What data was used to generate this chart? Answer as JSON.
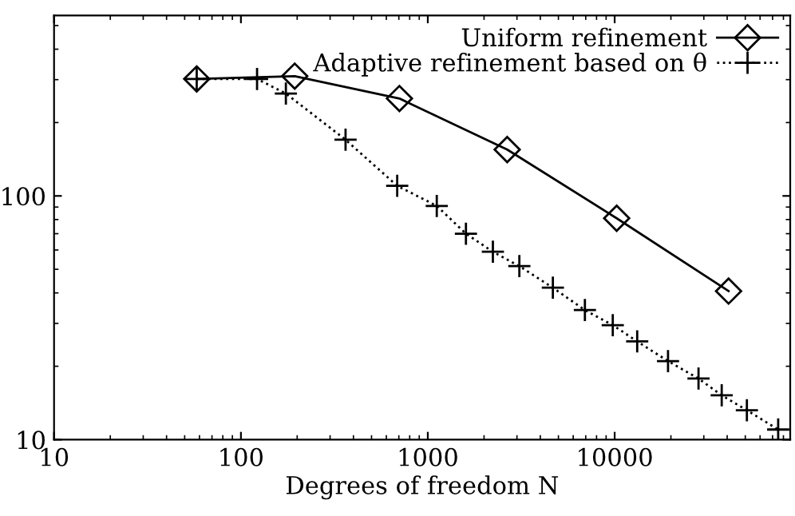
{
  "chart_data": {
    "type": "line",
    "xlabel": "Degrees of freedom N",
    "log": "xy",
    "xlim": [
      10,
      87000
    ],
    "ylim": [
      10,
      550
    ],
    "xticks": [
      10,
      100,
      1000,
      10000
    ],
    "yticks": [
      10,
      100
    ],
    "grid": false,
    "legend": "top right",
    "series": [
      {
        "name": "Uniform refinement",
        "color": "#000000",
        "marker": "diamond",
        "line_style": "solid",
        "x": [
          58,
          194,
          705,
          2660,
          10250,
          40700
        ],
        "values": [
          302,
          310,
          251,
          155,
          81,
          40.7
        ]
      },
      {
        "name": "Adaptive refinement based on θ",
        "color": "#000000",
        "marker": "cross",
        "line_style": "dotted",
        "x": [
          58,
          122,
          174,
          363,
          686,
          1117,
          1600,
          2230,
          3090,
          4670,
          6930,
          9770,
          13200,
          19300,
          28100,
          37400,
          51000,
          75000
        ],
        "values": [
          302,
          302,
          263,
          170,
          110,
          91,
          70,
          59,
          51.5,
          42,
          34,
          29.5,
          25.3,
          21,
          17.8,
          15.2,
          13.2,
          11
        ]
      }
    ]
  }
}
